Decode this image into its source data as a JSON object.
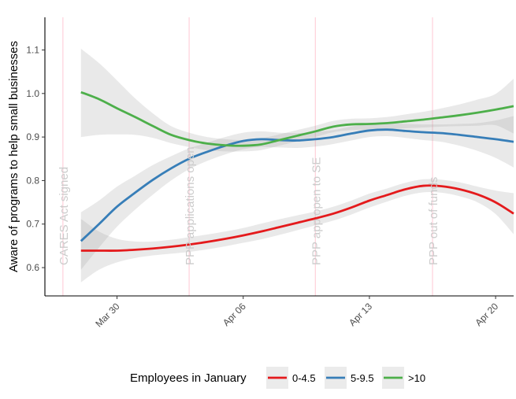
{
  "chart_data": {
    "type": "line",
    "title": "",
    "xlabel": "",
    "ylabel": "Aware of programs to help small businesses",
    "x_axis": {
      "type": "date",
      "range": [
        "2020-03-26",
        "2020-04-21"
      ],
      "ticks": [
        {
          "date": "2020-03-30",
          "label": "Mar 30"
        },
        {
          "date": "2020-04-06",
          "label": "Apr 06"
        },
        {
          "date": "2020-04-13",
          "label": "Apr 13"
        },
        {
          "date": "2020-04-20",
          "label": "Apr 20"
        }
      ]
    },
    "y_axis": {
      "range": [
        0.535,
        1.175
      ],
      "ticks": [
        0.6,
        0.7,
        0.8,
        0.9,
        1.0,
        1.1
      ],
      "tick_labels": [
        "0.6",
        "0.7",
        "0.8",
        "0.9",
        "1.0",
        "1.1"
      ]
    },
    "grid": false,
    "events": [
      {
        "date": "2020-03-27",
        "label": "CARES Act signed"
      },
      {
        "date": "2020-04-03",
        "label": "PPP applications open"
      },
      {
        "date": "2020-04-10",
        "label": "PPP app open to SE"
      },
      {
        "date": "2020-04-16.5",
        "label": "PPP out of funds"
      }
    ],
    "series": [
      {
        "name": "0-4.5",
        "color": "#e41a1c",
        "x": [
          "2020-03-28",
          "2020-03-29",
          "2020-03-30",
          "2020-03-31",
          "2020-04-01",
          "2020-04-02",
          "2020-04-03",
          "2020-04-04",
          "2020-04-05",
          "2020-04-06",
          "2020-04-07",
          "2020-04-08",
          "2020-04-09",
          "2020-04-10",
          "2020-04-11",
          "2020-04-12",
          "2020-04-13",
          "2020-04-14",
          "2020-04-15",
          "2020-04-16",
          "2020-04-17",
          "2020-04-18",
          "2020-04-19",
          "2020-04-20",
          "2020-04-21"
        ],
        "y": [
          0.639,
          0.639,
          0.639,
          0.641,
          0.644,
          0.648,
          0.653,
          0.659,
          0.666,
          0.674,
          0.683,
          0.693,
          0.703,
          0.713,
          0.724,
          0.738,
          0.754,
          0.767,
          0.78,
          0.788,
          0.787,
          0.78,
          0.768,
          0.75,
          0.724
        ],
        "ci_low": [
          0.566,
          0.595,
          0.612,
          0.622,
          0.628,
          0.632,
          0.636,
          0.642,
          0.649,
          0.657,
          0.665,
          0.675,
          0.686,
          0.697,
          0.708,
          0.722,
          0.738,
          0.752,
          0.765,
          0.773,
          0.772,
          0.764,
          0.75,
          0.723,
          0.677
        ],
        "ci_high": [
          0.712,
          0.683,
          0.666,
          0.66,
          0.66,
          0.664,
          0.67,
          0.676,
          0.683,
          0.691,
          0.701,
          0.711,
          0.72,
          0.729,
          0.74,
          0.754,
          0.77,
          0.782,
          0.795,
          0.803,
          0.802,
          0.796,
          0.786,
          0.777,
          0.771
        ]
      },
      {
        "name": "5-9.5",
        "color": "#377eb8",
        "x": [
          "2020-03-28",
          "2020-03-29",
          "2020-03-30",
          "2020-03-31",
          "2020-04-01",
          "2020-04-02",
          "2020-04-03",
          "2020-04-04",
          "2020-04-05",
          "2020-04-06",
          "2020-04-07",
          "2020-04-08",
          "2020-04-09",
          "2020-04-10",
          "2020-04-11",
          "2020-04-12",
          "2020-04-13",
          "2020-04-14",
          "2020-04-15",
          "2020-04-16",
          "2020-04-17",
          "2020-04-18",
          "2020-04-19",
          "2020-04-20",
          "2020-04-21"
        ],
        "y": [
          0.661,
          0.7,
          0.74,
          0.772,
          0.802,
          0.828,
          0.85,
          0.866,
          0.88,
          0.891,
          0.895,
          0.893,
          0.892,
          0.895,
          0.9,
          0.908,
          0.915,
          0.917,
          0.914,
          0.911,
          0.909,
          0.905,
          0.9,
          0.895,
          0.889
        ],
        "ci_low": [
          0.595,
          0.646,
          0.694,
          0.733,
          0.768,
          0.8,
          0.826,
          0.845,
          0.86,
          0.872,
          0.877,
          0.876,
          0.875,
          0.878,
          0.884,
          0.892,
          0.9,
          0.902,
          0.898,
          0.893,
          0.889,
          0.88,
          0.868,
          0.852,
          0.83
        ],
        "ci_high": [
          0.727,
          0.754,
          0.786,
          0.811,
          0.836,
          0.856,
          0.874,
          0.887,
          0.9,
          0.91,
          0.913,
          0.91,
          0.909,
          0.912,
          0.916,
          0.924,
          0.93,
          0.932,
          0.93,
          0.929,
          0.929,
          0.93,
          0.932,
          0.938,
          0.948
        ]
      },
      {
        "name": ">10",
        "color": "#4daf4a",
        "x": [
          "2020-03-28",
          "2020-03-29",
          "2020-03-30",
          "2020-03-31",
          "2020-04-01",
          "2020-04-02",
          "2020-04-03",
          "2020-04-04",
          "2020-04-05",
          "2020-04-06",
          "2020-04-07",
          "2020-04-08",
          "2020-04-09",
          "2020-04-10",
          "2020-04-11",
          "2020-04-12",
          "2020-04-13",
          "2020-04-14",
          "2020-04-15",
          "2020-04-16",
          "2020-04-17",
          "2020-04-18",
          "2020-04-19",
          "2020-04-20",
          "2020-04-21"
        ],
        "y": [
          1.003,
          0.987,
          0.966,
          0.946,
          0.925,
          0.905,
          0.893,
          0.885,
          0.881,
          0.88,
          0.883,
          0.893,
          0.903,
          0.913,
          0.924,
          0.929,
          0.93,
          0.932,
          0.936,
          0.94,
          0.945,
          0.95,
          0.956,
          0.963,
          0.971
        ],
        "ci_low": [
          0.9,
          0.905,
          0.906,
          0.905,
          0.898,
          0.886,
          0.877,
          0.87,
          0.867,
          0.867,
          0.87,
          0.88,
          0.89,
          0.9,
          0.911,
          0.916,
          0.917,
          0.918,
          0.92,
          0.922,
          0.924,
          0.925,
          0.926,
          0.927,
          0.908
        ],
        "ci_high": [
          1.103,
          1.07,
          1.03,
          0.989,
          0.954,
          0.925,
          0.91,
          0.9,
          0.895,
          0.893,
          0.897,
          0.906,
          0.916,
          0.926,
          0.937,
          0.942,
          0.943,
          0.946,
          0.952,
          0.958,
          0.966,
          0.975,
          0.986,
          0.999,
          1.034
        ]
      }
    ],
    "legend": {
      "title": "Employees in January",
      "position": "bottom",
      "entries": [
        "0-4.5",
        "5-9.5",
        ">10"
      ]
    }
  }
}
